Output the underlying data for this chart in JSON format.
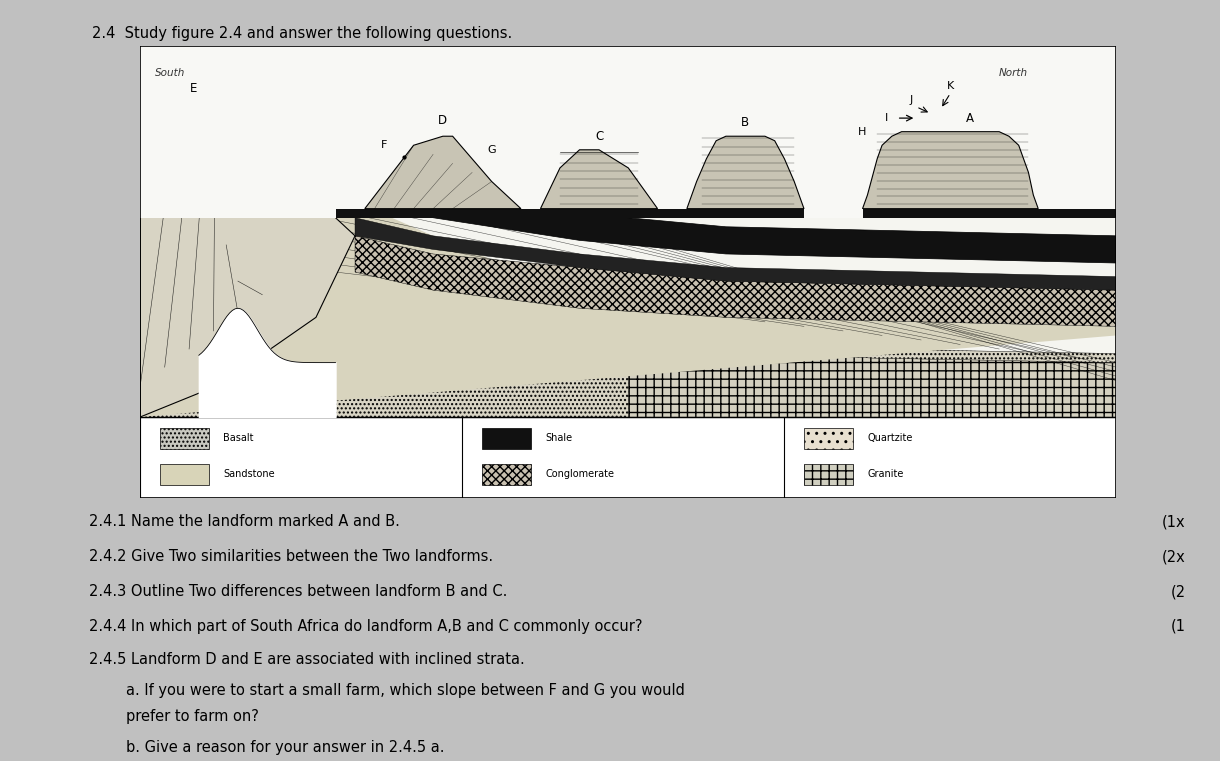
{
  "title": "2.4  Study figure 2.4 and answer the following questions.",
  "page_bg": "#c0c0c0",
  "diagram_bg": "#f0f0f0",
  "south_label": "South",
  "north_label": "North",
  "questions": [
    "2.4.1 Name the landform marked A and B.",
    "2.4.2 Give Two similarities between the Two landforms.",
    "2.4.3 Outline Two differences between landform B and C.",
    "2.4.4 In which part of South Africa do landform A,B and C commonly occur?",
    "2.4.5 Landform D and E are associated with inclined strata.",
    "        a. If you were to start a small farm, which slope between F and G you would",
    "        prefer to farm on?",
    "        b. Give a reason for your answer in 2.4.5 a."
  ],
  "marks": [
    "(1x",
    "(2x",
    "(2",
    "(1",
    "",
    "",
    "",
    ""
  ],
  "legend": [
    {
      "label": "Basalt",
      "col": 0
    },
    {
      "label": "Sandstone",
      "col": 0
    },
    {
      "label": "Shale",
      "col": 1
    },
    {
      "label": "Conglomerate",
      "col": 1
    },
    {
      "label": "Quartzite",
      "col": 2
    },
    {
      "label": "Granite",
      "col": 2
    }
  ]
}
